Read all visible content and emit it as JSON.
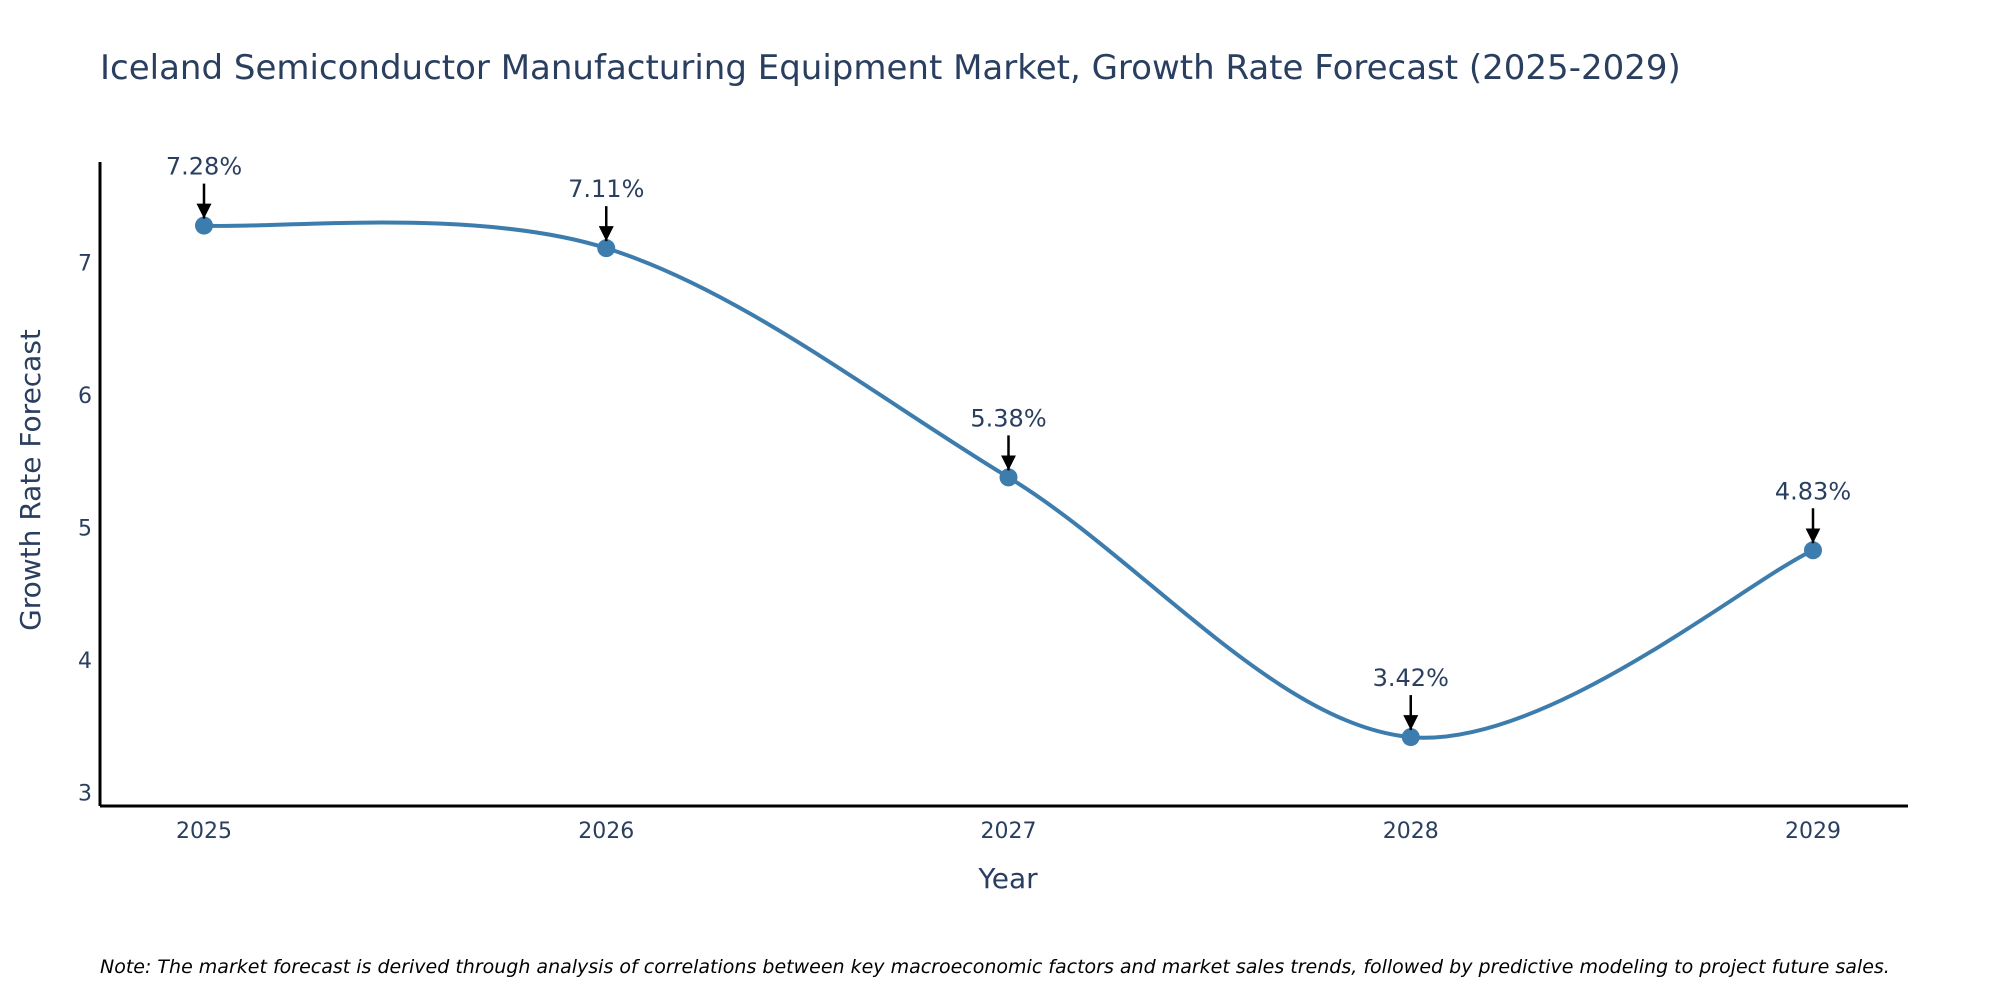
{
  "chart_data": {
    "type": "line",
    "title": "Iceland Semiconductor Manufacturing Equipment Market, Growth Rate Forecast (2025-2029)",
    "xlabel": "Year",
    "ylabel": "Growth Rate Forecast",
    "categories": [
      "2025",
      "2026",
      "2027",
      "2028",
      "2029"
    ],
    "series": [
      {
        "name": "Growth Rate Forecast",
        "values": [
          7.28,
          7.11,
          5.38,
          3.42,
          4.83
        ],
        "labels": [
          "7.28%",
          "7.11%",
          "5.38%",
          "3.42%",
          "4.83%"
        ]
      }
    ],
    "yticks": [
      "3",
      "4",
      "5",
      "6",
      "7"
    ],
    "ylim": [
      2.9,
      7.76
    ],
    "grid": false,
    "line_shape": "spline"
  },
  "colors": {
    "line": "#3d7dae",
    "marker": "#3d7dae",
    "text": "#2a3f5f",
    "axis": "#000000",
    "arrow": "#000000"
  },
  "note": "Note: The market forecast is derived through analysis of correlations between key macroeconomic factors and market sales trends, followed by predictive modeling to project future sales."
}
